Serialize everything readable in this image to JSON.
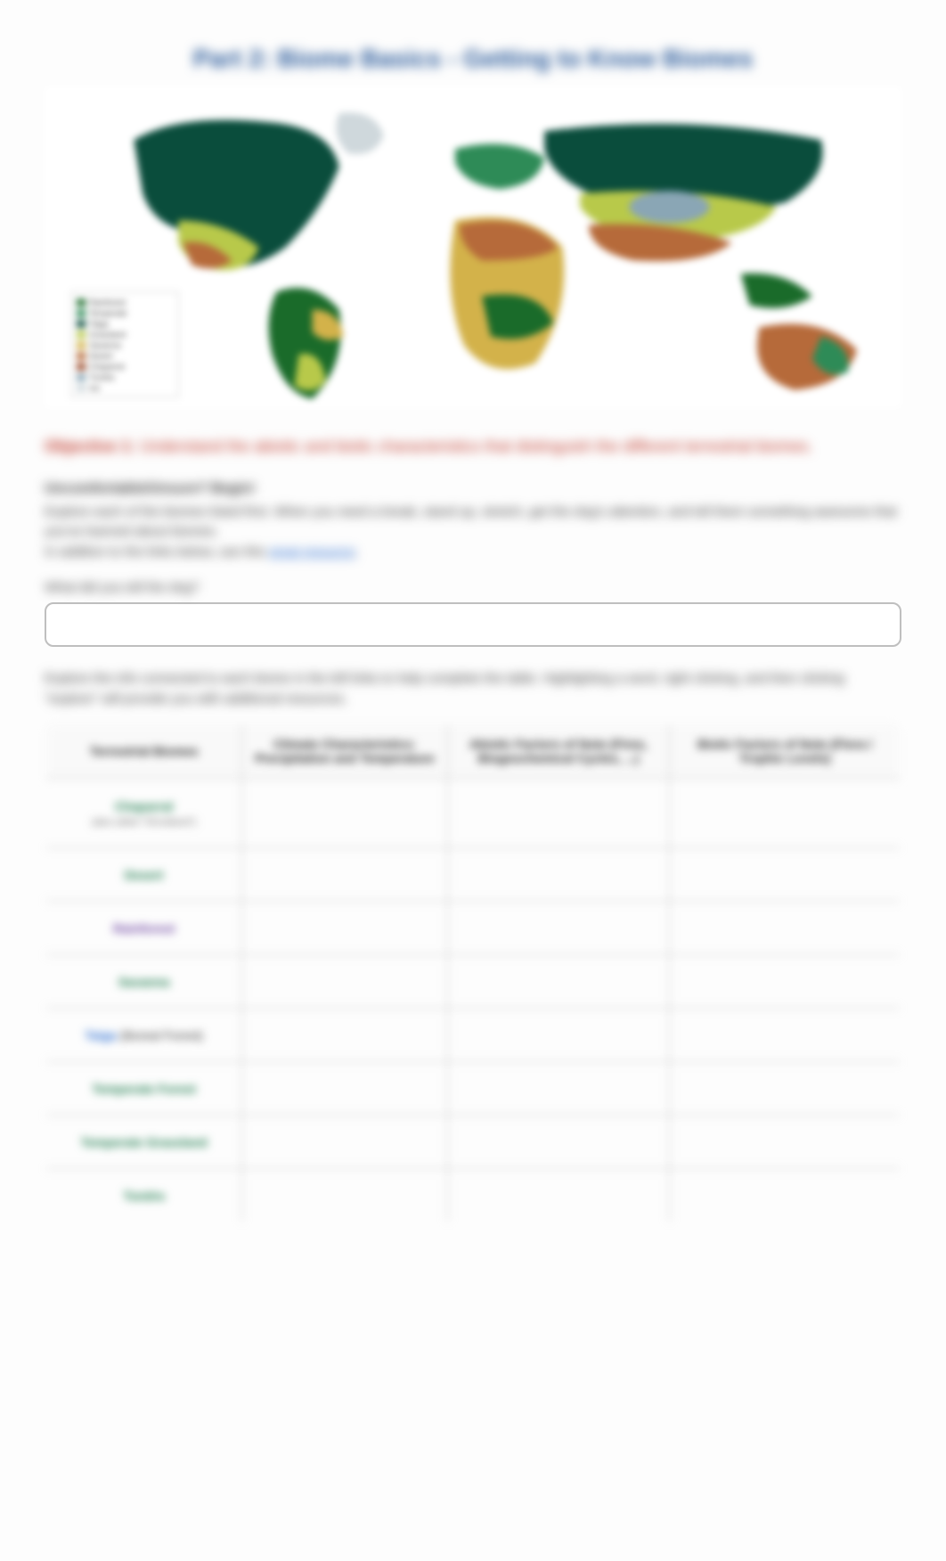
{
  "title": "Part 2: Biome Basics - Getting to Know Biomes",
  "map": {
    "background": "#ffffff",
    "ocean": "#ffffff",
    "continent_shapes": true,
    "colors": {
      "boreal": "#0a4d3c",
      "temperate_forest": "#2e8b57",
      "grassland": "#b8c94a",
      "desert": "#b66a3a",
      "savanna": "#d3b24a",
      "rainforest": "#1a6b2a",
      "tundra": "#8aa6b5",
      "chaparral": "#9a4a2a",
      "ice": "#cfd8dc"
    },
    "legend_items": [
      "Tropical Rainforest",
      "Temperate Forest",
      "Taiga (Boreal)",
      "Grassland",
      "Savanna",
      "Desert",
      "Chaparral",
      "Tundra",
      "Ice"
    ]
  },
  "objective": {
    "label": "Objective 1:",
    "text": "Understand the abiotic and biotic characteristics that distinguish the different terrestrial biomes."
  },
  "question_heading": "Uncomfortable/Unsure? Begin!",
  "instructions_1": "Explore each of the biomes listed first. When you need a break, stand up, stretch, get the dog's attention, and tell them something awesome that you've learned about biomes.",
  "instructions_2_prefix": "In addition to the links below, use this ",
  "instructions_2_link": "great resource",
  "prompt": "What did you tell the dog?",
  "answer_value": "",
  "table_intro": "Explore the info connected to each biome in the left links to help complete the table. Highlighting a word, right clicking, and then clicking \"explore\" will provide you with additional resources.",
  "table": {
    "headers": [
      "Terrestrial Biomes",
      "Climate Characteristics: Precipitation and Temperature",
      "Abiotic Factors of Note (Fires, Biogeochemical Cycles, ...)",
      "Biotic Factors of Note (Flora / Trophic Levels)"
    ],
    "rows": [
      {
        "label": "Chaparral",
        "note": "(aka called \"Shrubland\")",
        "link_class": "green"
      },
      {
        "label": "Desert",
        "note": "",
        "link_class": "green"
      },
      {
        "label": "Rainforest",
        "note": "",
        "link_class": "purple"
      },
      {
        "label": "Savanna",
        "note": "",
        "link_class": "green"
      },
      {
        "label_prefix": "Taiga",
        "label_suffix": " (Boreal Forest)",
        "note": "",
        "link_class": "blue"
      },
      {
        "label": "Temperate Forest",
        "note": "",
        "link_class": "green"
      },
      {
        "label": "Temperate Grassland",
        "note": "",
        "link_class": "green"
      },
      {
        "label": "Tundra",
        "note": "",
        "link_class": "green"
      }
    ],
    "header_bg": "#f9f9f9",
    "border_color": "#bfbfbf"
  }
}
